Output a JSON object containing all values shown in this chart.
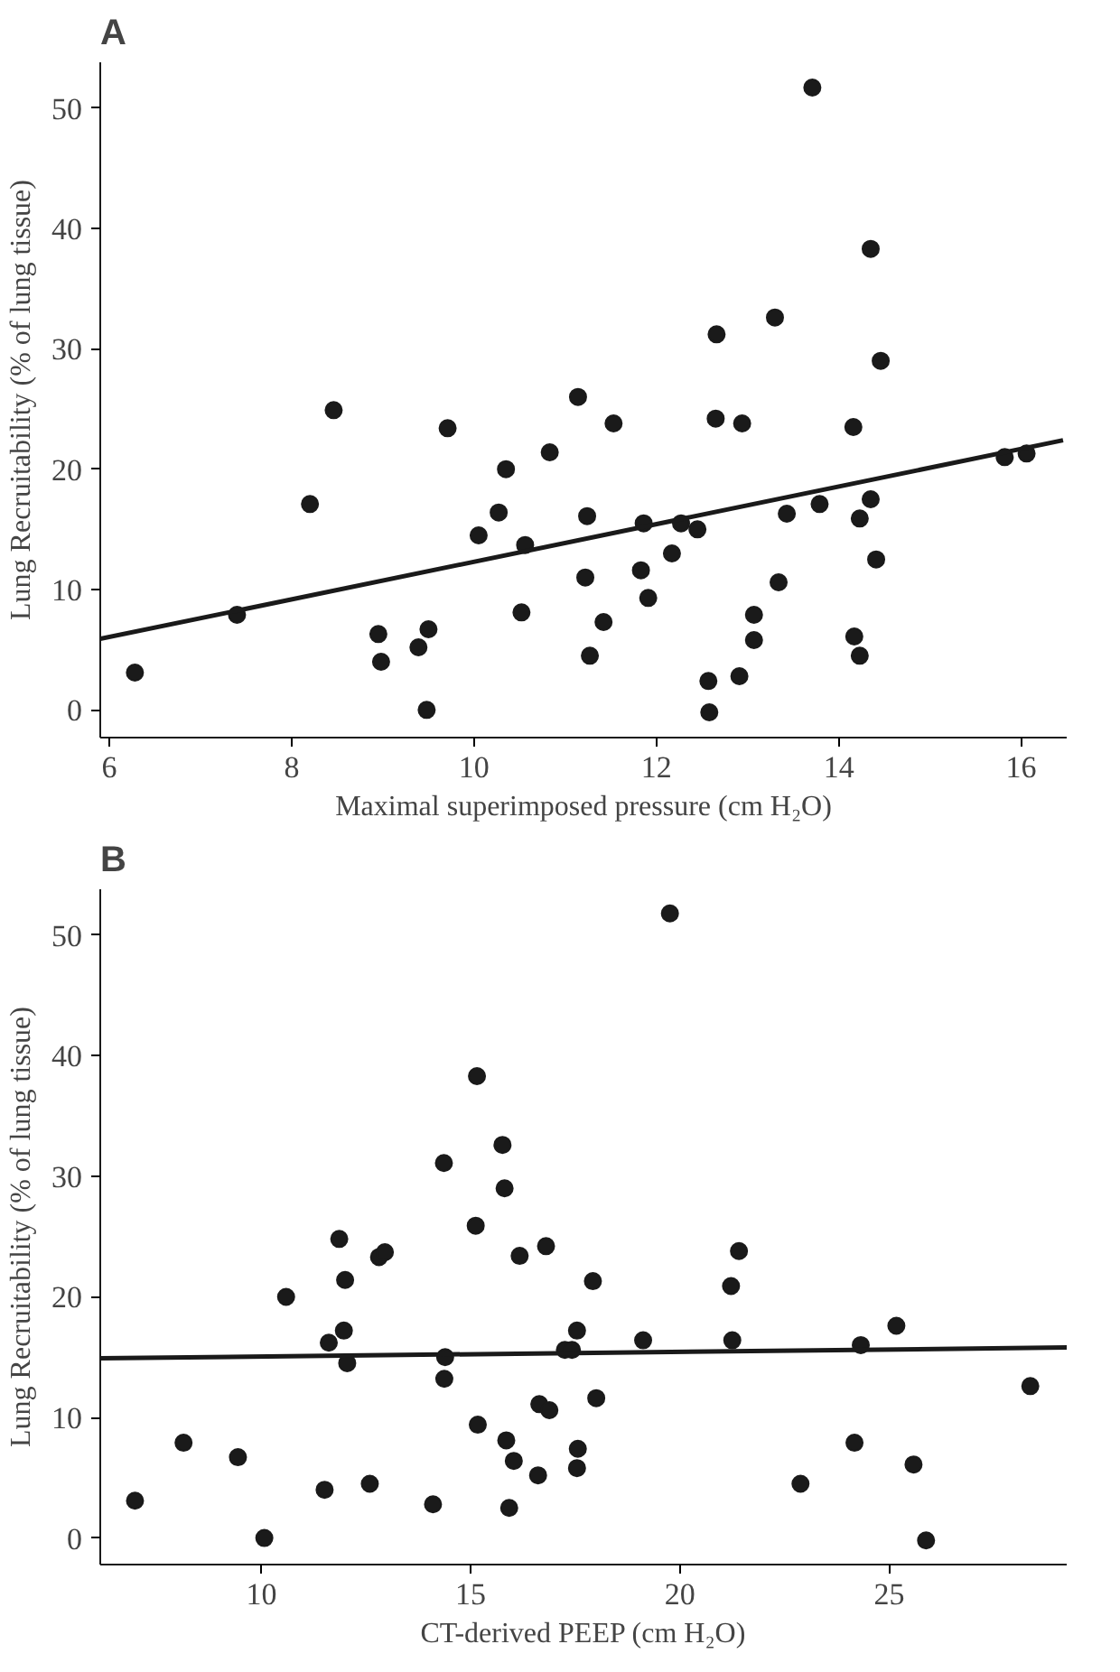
{
  "chart_data": [
    {
      "type": "scatter",
      "title": "A",
      "xlabel": "Maximal superimposed pressure (cm H₂O)",
      "ylabel": "Lung Recruitability (% of lung tissue)",
      "xlim": [
        5.9,
        16.5
      ],
      "ylim": [
        -2.3,
        53.8
      ],
      "xticks": [
        6,
        8,
        10,
        12,
        14,
        16
      ],
      "yticks": [
        0,
        10,
        20,
        30,
        40,
        50
      ],
      "grid": false,
      "series": [
        {
          "color": "#1a1a1a",
          "marker": "circle",
          "x": [
            13.71,
            14.35,
            13.3,
            12.66,
            14.46,
            8.46,
            9.71,
            11.14,
            11.53,
            12.65,
            12.94,
            14.16,
            15.82,
            16.06,
            10.35,
            10.83,
            8.2,
            6.28,
            7.4,
            8.95,
            8.98,
            9.39,
            9.5,
            9.48,
            10.05,
            10.27,
            10.56,
            10.52,
            11.24,
            11.22,
            11.27,
            11.42,
            11.86,
            11.83,
            11.91,
            12.17,
            12.27,
            12.45,
            12.57,
            12.58,
            12.91,
            13.07,
            13.07,
            13.34,
            13.43,
            13.79,
            14.23,
            14.35,
            14.17,
            14.23,
            14.41
          ],
          "values": [
            51.7,
            38.3,
            32.6,
            31.2,
            29.0,
            24.9,
            23.4,
            26.0,
            23.8,
            24.2,
            23.8,
            23.5,
            21.0,
            21.3,
            20.0,
            21.4,
            17.1,
            3.1,
            7.9,
            6.3,
            4.0,
            5.2,
            6.7,
            0,
            14.5,
            16.4,
            13.7,
            8.1,
            16.1,
            11.0,
            4.5,
            7.3,
            15.5,
            11.6,
            9.3,
            13.0,
            15.5,
            15.0,
            2.4,
            -0.2,
            2.8,
            7.9,
            5.8,
            10.6,
            16.3,
            17.1,
            15.9,
            17.5,
            6.1,
            4.5,
            12.5
          ]
        },
        {
          "type": "line",
          "marker": "none",
          "color": "#1a1a1a",
          "x": [
            5.9,
            16.46
          ],
          "values": [
            5.9,
            22.4
          ]
        }
      ]
    },
    {
      "type": "scatter",
      "title": "B",
      "xlabel": "CT-derived PEEP (cm H₂O)",
      "ylabel": "Lung Recruitability (% of lung tissue)",
      "xlim": [
        6.15,
        29.24
      ],
      "ylim": [
        -2.2,
        53.8
      ],
      "xticks": [
        10,
        15,
        20,
        25
      ],
      "yticks": [
        0,
        10,
        20,
        30,
        40,
        50
      ],
      "grid": false,
      "series": [
        {
          "color": "#1a1a1a",
          "marker": "circle",
          "x": [
            19.76,
            15.15,
            15.76,
            14.36,
            15.81,
            15.12,
            11.86,
            12.81,
            12.95,
            16.17,
            16.8,
            21.41,
            12.0,
            17.92,
            21.22,
            10.59,
            11.61,
            11.97,
            12.05,
            14.39,
            14.37,
            17.25,
            17.42,
            17.54,
            19.12,
            21.25,
            24.32,
            25.17,
            28.37,
            18.0,
            16.64,
            16.88,
            15.17,
            15.85,
            16.03,
            16.61,
            17.56,
            17.54,
            15.92,
            14.1,
            12.59,
            11.51,
            10.07,
            9.44,
            8.14,
            6.98,
            22.88,
            24.17,
            25.58,
            25.88
          ],
          "values": [
            51.8,
            38.3,
            32.6,
            31.1,
            29.0,
            25.9,
            24.8,
            23.3,
            23.7,
            23.4,
            24.2,
            23.8,
            21.4,
            21.3,
            20.9,
            20.0,
            16.2,
            17.2,
            14.5,
            15.0,
            13.2,
            15.6,
            15.6,
            17.2,
            16.4,
            16.4,
            16.0,
            17.6,
            12.6,
            11.6,
            11.1,
            10.6,
            9.4,
            8.1,
            6.4,
            5.2,
            7.4,
            5.8,
            2.5,
            2.8,
            4.5,
            4.0,
            0,
            6.7,
            7.9,
            3.1,
            4.5,
            7.9,
            6.1,
            -0.2
          ]
        },
        {
          "type": "line",
          "marker": "none",
          "color": "#1a1a1a",
          "x": [
            6.15,
            29.24
          ],
          "values": [
            14.9,
            15.8
          ]
        }
      ]
    }
  ]
}
